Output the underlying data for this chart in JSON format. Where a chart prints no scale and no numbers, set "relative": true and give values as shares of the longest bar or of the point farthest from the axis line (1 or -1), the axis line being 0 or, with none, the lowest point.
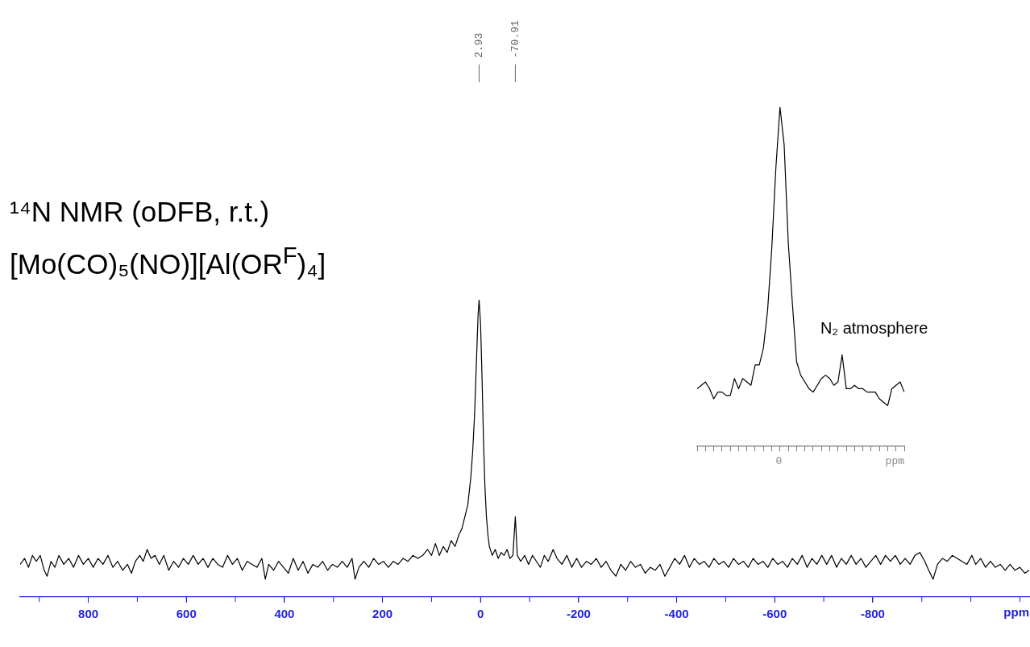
{
  "chart_data": [
    {
      "type": "line",
      "title": "¹⁴N NMR (oDFB, r.t.)",
      "subtitle": "[Mo(CO)₅(NO)][Al(OR$^{F}$)₄]",
      "xlabel": "ppm",
      "relative": true,
      "marker": "none",
      "line_style": "solid",
      "legend": false,
      "tick_labels": "x",
      "xlim": [
        939,
        -1119
      ],
      "xticks": [
        800,
        600,
        400,
        200,
        0,
        -200,
        -400,
        -600,
        -800
      ],
      "annotations": [
        {
          "text": "2.93",
          "x": 2.93
        },
        {
          "text": "-70.91",
          "x": -70.91
        }
      ],
      "series": [
        {
          "color": "#000000",
          "x": [
            939,
            930,
            922,
            914,
            906,
            898,
            890,
            884,
            876,
            868,
            860,
            850,
            840,
            830,
            820,
            810,
            800,
            790,
            780,
            770,
            760,
            750,
            740,
            730,
            720,
            712,
            704,
            695,
            688,
            680,
            672,
            664,
            655,
            646,
            636,
            626,
            616,
            606,
            596,
            586,
            576,
            566,
            556,
            546,
            536,
            526,
            516,
            506,
            496,
            486,
            476,
            466,
            456,
            446,
            439,
            432,
            422,
            412,
            402,
            392,
            382,
            372,
            362,
            352,
            342,
            332,
            322,
            312,
            302,
            292,
            282,
            272,
            262,
            256,
            248,
            238,
            228,
            218,
            208,
            198,
            188,
            178,
            168,
            158,
            148,
            138,
            128,
            118,
            108,
            100,
            92,
            84,
            76,
            68,
            60,
            52,
            44,
            38,
            32,
            26,
            20,
            16,
            12,
            8,
            5,
            2.93,
            0,
            -3,
            -6,
            -9,
            -12,
            -15,
            -18,
            -24,
            -30,
            -36,
            -42,
            -48,
            -54,
            -60,
            -66,
            -70.91,
            -75,
            -82,
            -90,
            -98,
            -106,
            -114,
            -122,
            -130,
            -138,
            -148,
            -156,
            -166,
            -176,
            -186,
            -196,
            -206,
            -216,
            -226,
            -236,
            -246,
            -256,
            -266,
            -276,
            -286,
            -296,
            -306,
            -316,
            -326,
            -336,
            -346,
            -356,
            -366,
            -376,
            -386,
            -396,
            -406,
            -416,
            -426,
            -436,
            -446,
            -456,
            -466,
            -476,
            -486,
            -496,
            -506,
            -516,
            -526,
            -536,
            -546,
            -556,
            -566,
            -576,
            -586,
            -596,
            -606,
            -616,
            -626,
            -636,
            -646,
            -656,
            -666,
            -676,
            -686,
            -696,
            -706,
            -716,
            -726,
            -736,
            -746,
            -756,
            -766,
            -776,
            -786,
            -796,
            -806,
            -816,
            -826,
            -836,
            -846,
            -856,
            -866,
            -876,
            -886,
            -896,
            -906,
            -914,
            -923,
            -932,
            -942,
            -952,
            -962,
            -972,
            -982,
            -992,
            -1002,
            -1010,
            -1020,
            -1030,
            -1040,
            -1050,
            -1060,
            -1070,
            -1080,
            -1090,
            -1100,
            -1110,
            -1119
          ],
          "values": [
            0.11,
            0.13,
            0.1,
            0.14,
            0.12,
            0.14,
            0.09,
            0.07,
            0.12,
            0.1,
            0.14,
            0.11,
            0.13,
            0.1,
            0.14,
            0.11,
            0.13,
            0.1,
            0.13,
            0.11,
            0.14,
            0.1,
            0.12,
            0.09,
            0.11,
            0.08,
            0.12,
            0.14,
            0.12,
            0.16,
            0.13,
            0.14,
            0.11,
            0.14,
            0.09,
            0.12,
            0.1,
            0.13,
            0.11,
            0.14,
            0.11,
            0.13,
            0.1,
            0.13,
            0.11,
            0.1,
            0.14,
            0.11,
            0.13,
            0.09,
            0.12,
            0.11,
            0.1,
            0.13,
            0.06,
            0.11,
            0.09,
            0.12,
            0.1,
            0.08,
            0.13,
            0.09,
            0.12,
            0.08,
            0.11,
            0.1,
            0.12,
            0.09,
            0.11,
            0.1,
            0.12,
            0.1,
            0.13,
            0.06,
            0.1,
            0.12,
            0.1,
            0.13,
            0.11,
            0.12,
            0.1,
            0.12,
            0.11,
            0.13,
            0.12,
            0.14,
            0.13,
            0.14,
            0.16,
            0.14,
            0.18,
            0.14,
            0.17,
            0.15,
            0.19,
            0.17,
            0.21,
            0.23,
            0.27,
            0.31,
            0.4,
            0.49,
            0.62,
            0.81,
            0.95,
            1,
            0.92,
            0.74,
            0.53,
            0.37,
            0.27,
            0.21,
            0.17,
            0.14,
            0.16,
            0.13,
            0.15,
            0.14,
            0.16,
            0.13,
            0.14,
            0.27,
            0.14,
            0.12,
            0.14,
            0.11,
            0.14,
            0.12,
            0.1,
            0.14,
            0.12,
            0.16,
            0.13,
            0.11,
            0.14,
            0.1,
            0.13,
            0.1,
            0.12,
            0.11,
            0.13,
            0.1,
            0.12,
            0.09,
            0.07,
            0.11,
            0.09,
            0.12,
            0.1,
            0.11,
            0.08,
            0.1,
            0.09,
            0.11,
            0.07,
            0.1,
            0.13,
            0.11,
            0.14,
            0.1,
            0.13,
            0.11,
            0.12,
            0.1,
            0.13,
            0.11,
            0.12,
            0.1,
            0.13,
            0.11,
            0.12,
            0.1,
            0.13,
            0.11,
            0.12,
            0.1,
            0.13,
            0.11,
            0.12,
            0.1,
            0.13,
            0.11,
            0.14,
            0.1,
            0.13,
            0.11,
            0.14,
            0.11,
            0.14,
            0.1,
            0.13,
            0.11,
            0.14,
            0.11,
            0.13,
            0.1,
            0.12,
            0.14,
            0.11,
            0.14,
            0.12,
            0.14,
            0.11,
            0.13,
            0.11,
            0.14,
            0.15,
            0.12,
            0.09,
            0.06,
            0.11,
            0.13,
            0.12,
            0.14,
            0.13,
            0.12,
            0.11,
            0.14,
            0.11,
            0.13,
            0.1,
            0.12,
            0.1,
            0.11,
            0.09,
            0.11,
            0.09,
            0.1,
            0.08,
            0.09
          ]
        }
      ]
    },
    {
      "type": "line",
      "xlabel": "ppm",
      "relative": true,
      "marker": "none",
      "line_style": "solid",
      "legend": false,
      "tick_labels": false,
      "categories": [
        null,
        null,
        null,
        null,
        null,
        null,
        null,
        null,
        null,
        null,
        null,
        null,
        null,
        null,
        null,
        null,
        null,
        null,
        null,
        null,
        null,
        null,
        null,
        null,
        null,
        null,
        null,
        null,
        null,
        null,
        null,
        null,
        null,
        null,
        null,
        null,
        null,
        null,
        null,
        null,
        null,
        null,
        null,
        null,
        null,
        null,
        null,
        null,
        null,
        null,
        null
      ],
      "annotations": [
        "N₂ atmosphere",
        "0"
      ],
      "series": [
        {
          "color": "#000000",
          "values": [
            0.17,
            0.18,
            0.19,
            0.17,
            0.14,
            0.16,
            0.16,
            0.15,
            0.15,
            0.2,
            0.17,
            0.2,
            0.19,
            0.18,
            0.24,
            0.24,
            0.29,
            0.4,
            0.58,
            0.82,
            1,
            0.89,
            0.6,
            0.42,
            0.25,
            0.21,
            0.19,
            0.17,
            0.16,
            0.18,
            0.2,
            0.21,
            0.2,
            0.18,
            0.19,
            0.27,
            0.17,
            0.17,
            0.18,
            0.17,
            0.17,
            0.16,
            0.16,
            0.16,
            0.14,
            0.13,
            0.12,
            0.17,
            0.18,
            0.19,
            0.16
          ]
        }
      ]
    }
  ]
}
